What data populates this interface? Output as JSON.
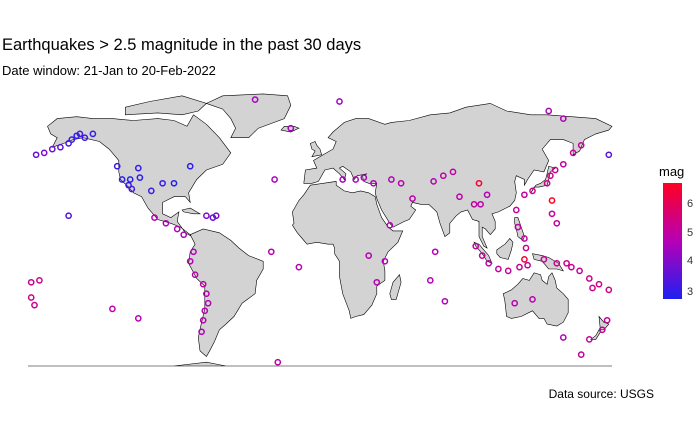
{
  "header": {
    "title": "Earthquakes > 2.5 magnitude in the past 30 days",
    "subtitle": "Date window: 21-Jan to 20-Feb-2022"
  },
  "caption": "Data source: USGS",
  "legend": {
    "title": "mag",
    "ticks": [
      "3",
      "4",
      "5",
      "6"
    ],
    "colors": {
      "low": "#1f1ff0",
      "mid": "#b600b6",
      "high": "#ff0022"
    }
  },
  "map": {
    "land_color": "#d3d3d3",
    "border_color": "#000000"
  },
  "chart_data": {
    "type": "scatter",
    "title": "Earthquakes > 2.5 magnitude in the past 30 days",
    "xlabel": "",
    "ylabel": "",
    "xlim": [
      -180,
      180
    ],
    "ylim": [
      -60,
      84
    ],
    "color_scale": {
      "variable": "mag",
      "range": [
        2.5,
        6.8
      ],
      "ticks": [
        3,
        4,
        5,
        6
      ]
    },
    "grid": false,
    "legend": "right",
    "points": [
      {
        "lon": -153,
        "lat": 59,
        "mag": 2.8
      },
      {
        "lon": -150,
        "lat": 61,
        "mag": 2.7
      },
      {
        "lon": -148,
        "lat": 62,
        "mag": 3.0
      },
      {
        "lon": -145,
        "lat": 60,
        "mag": 2.9
      },
      {
        "lon": -155,
        "lat": 57,
        "mag": 3.1
      },
      {
        "lon": -160,
        "lat": 55,
        "mag": 3.4
      },
      {
        "lon": -165,
        "lat": 54,
        "mag": 3.6
      },
      {
        "lon": -170,
        "lat": 52,
        "mag": 3.8
      },
      {
        "lon": -175,
        "lat": 51,
        "mag": 3.5
      },
      {
        "lon": 178,
        "lat": 51,
        "mag": 3.4
      },
      {
        "lon": -140,
        "lat": 62,
        "mag": 2.8
      },
      {
        "lon": -122,
        "lat": 38,
        "mag": 2.7
      },
      {
        "lon": -118,
        "lat": 35,
        "mag": 2.9
      },
      {
        "lon": -116,
        "lat": 33,
        "mag": 3.0
      },
      {
        "lon": -117,
        "lat": 38,
        "mag": 2.6
      },
      {
        "lon": -112,
        "lat": 44,
        "mag": 2.8
      },
      {
        "lon": -111,
        "lat": 39,
        "mag": 2.7
      },
      {
        "lon": -125,
        "lat": 45,
        "mag": 2.8
      },
      {
        "lon": -97,
        "lat": 36,
        "mag": 2.8
      },
      {
        "lon": -104,
        "lat": 32,
        "mag": 3.0
      },
      {
        "lon": -90,
        "lat": 36,
        "mag": 2.6
      },
      {
        "lon": -80,
        "lat": 45,
        "mag": 2.7
      },
      {
        "lon": -155,
        "lat": 19,
        "mag": 3.2
      },
      {
        "lon": -66,
        "lat": 18,
        "mag": 3.5
      },
      {
        "lon": -64,
        "lat": 19,
        "mag": 3.8
      },
      {
        "lon": -70,
        "lat": 19,
        "mag": 4.0
      },
      {
        "lon": -95,
        "lat": 15,
        "mag": 4.5
      },
      {
        "lon": -102,
        "lat": 18,
        "mag": 4.7
      },
      {
        "lon": -88,
        "lat": 12,
        "mag": 4.6
      },
      {
        "lon": -84,
        "lat": 9,
        "mag": 4.5
      },
      {
        "lon": -78,
        "lat": 0,
        "mag": 4.6
      },
      {
        "lon": -80,
        "lat": -5,
        "mag": 4.7
      },
      {
        "lon": -77,
        "lat": -12,
        "mag": 4.8
      },
      {
        "lon": -72,
        "lat": -17,
        "mag": 4.9
      },
      {
        "lon": -70,
        "lat": -22,
        "mag": 4.7
      },
      {
        "lon": -69,
        "lat": -27,
        "mag": 4.6
      },
      {
        "lon": -71,
        "lat": -31,
        "mag": 4.8
      },
      {
        "lon": -72,
        "lat": -36,
        "mag": 4.7
      },
      {
        "lon": -73,
        "lat": -42,
        "mag": 4.6
      },
      {
        "lon": -26,
        "lat": -58,
        "mag": 4.9
      },
      {
        "lon": -30,
        "lat": 0,
        "mag": 4.7
      },
      {
        "lon": -28,
        "lat": 38,
        "mag": 4.5
      },
      {
        "lon": -18,
        "lat": 65,
        "mag": 4.4
      },
      {
        "lon": -13,
        "lat": -8,
        "mag": 4.7
      },
      {
        "lon": 14,
        "lat": 38,
        "mag": 4.4
      },
      {
        "lon": 22,
        "lat": 38,
        "mag": 4.6
      },
      {
        "lon": 27,
        "lat": 39,
        "mag": 4.5
      },
      {
        "lon": 33,
        "lat": 36,
        "mag": 4.6
      },
      {
        "lon": 44,
        "lat": 38,
        "mag": 4.6
      },
      {
        "lon": 50,
        "lat": 36,
        "mag": 4.7
      },
      {
        "lon": 57,
        "lat": 28,
        "mag": 4.8
      },
      {
        "lon": 70,
        "lat": 37,
        "mag": 4.7
      },
      {
        "lon": 76,
        "lat": 40,
        "mag": 4.8
      },
      {
        "lon": 82,
        "lat": 42,
        "mag": 4.9
      },
      {
        "lon": 86,
        "lat": 29,
        "mag": 4.8
      },
      {
        "lon": 95,
        "lat": 25,
        "mag": 4.9
      },
      {
        "lon": 99,
        "lat": 25,
        "mag": 4.8
      },
      {
        "lon": 103,
        "lat": 30,
        "mag": 4.7
      },
      {
        "lon": 96,
        "lat": 3,
        "mag": 5.0
      },
      {
        "lon": 100,
        "lat": -2,
        "mag": 5.1
      },
      {
        "lon": 104,
        "lat": -6,
        "mag": 4.9
      },
      {
        "lon": 110,
        "lat": -9,
        "mag": 5.0
      },
      {
        "lon": 116,
        "lat": -10,
        "mag": 5.1
      },
      {
        "lon": 123,
        "lat": -8,
        "mag": 5.2
      },
      {
        "lon": 128,
        "lat": -7,
        "mag": 5.1
      },
      {
        "lon": 127,
        "lat": 2,
        "mag": 5.2
      },
      {
        "lon": 126,
        "lat": 7,
        "mag": 5.0
      },
      {
        "lon": 122,
        "lat": 13,
        "mag": 5.0
      },
      {
        "lon": 121,
        "lat": 22,
        "mag": 5.1
      },
      {
        "lon": 126,
        "lat": 30,
        "mag": 5.0
      },
      {
        "lon": 131,
        "lat": 32,
        "mag": 5.2
      },
      {
        "lon": 140,
        "lat": 36,
        "mag": 5.3
      },
      {
        "lon": 142,
        "lat": 40,
        "mag": 5.4
      },
      {
        "lon": 145,
        "lat": 43,
        "mag": 5.2
      },
      {
        "lon": 150,
        "lat": 46,
        "mag": 5.0
      },
      {
        "lon": 156,
        "lat": 52,
        "mag": 5.1
      },
      {
        "lon": 161,
        "lat": 56,
        "mag": 5.0
      },
      {
        "lon": 143,
        "lat": 20,
        "mag": 5.1
      },
      {
        "lon": 146,
        "lat": 15,
        "mag": 5.0
      },
      {
        "lon": 138,
        "lat": -4,
        "mag": 5.1
      },
      {
        "lon": 146,
        "lat": -6,
        "mag": 5.2
      },
      {
        "lon": 152,
        "lat": -6,
        "mag": 5.3
      },
      {
        "lon": 155,
        "lat": -8,
        "mag": 5.2
      },
      {
        "lon": 160,
        "lat": -10,
        "mag": 5.1
      },
      {
        "lon": 166,
        "lat": -14,
        "mag": 5.3
      },
      {
        "lon": 168,
        "lat": -19,
        "mag": 5.2
      },
      {
        "lon": 172,
        "lat": -17,
        "mag": 5.4
      },
      {
        "lon": 178,
        "lat": -20,
        "mag": 5.3
      },
      {
        "lon": -178,
        "lat": -24,
        "mag": 5.2
      },
      {
        "lon": -176,
        "lat": -28,
        "mag": 5.1
      },
      {
        "lon": 177,
        "lat": -36,
        "mag": 5.0
      },
      {
        "lon": 174,
        "lat": -41,
        "mag": 5.1
      },
      {
        "lon": 166,
        "lat": -46,
        "mag": 5.0
      },
      {
        "lon": 161,
        "lat": -54,
        "mag": 5.0
      },
      {
        "lon": -178,
        "lat": -16,
        "mag": 5.1
      },
      {
        "lon": -173,
        "lat": -15,
        "mag": 5.3
      },
      {
        "lon": -128,
        "lat": -30,
        "mag": 4.8
      },
      {
        "lon": -112,
        "lat": -35,
        "mag": 4.7
      },
      {
        "lon": 68,
        "lat": -15,
        "mag": 4.6
      },
      {
        "lon": 71,
        "lat": 0,
        "mag": 4.6
      },
      {
        "lon": 77,
        "lat": -26,
        "mag": 4.6
      },
      {
        "lon": 40,
        "lat": -5,
        "mag": 4.6
      },
      {
        "lon": 30,
        "lat": -2,
        "mag": 4.7
      },
      {
        "lon": 35,
        "lat": -16,
        "mag": 4.7
      },
      {
        "lon": 43,
        "lat": 14,
        "mag": 4.6
      },
      {
        "lon": 120,
        "lat": -27,
        "mag": 4.7
      },
      {
        "lon": 131,
        "lat": -25,
        "mag": 4.8
      },
      {
        "lon": 150,
        "lat": -45,
        "mag": 4.6
      },
      {
        "lon": 141,
        "lat": 74,
        "mag": 4.5
      },
      {
        "lon": 150,
        "lat": 70,
        "mag": 4.6
      },
      {
        "lon": 12,
        "lat": 79,
        "mag": 4.3
      },
      {
        "lon": -40,
        "lat": 80,
        "mag": 4.4
      },
      {
        "lon": 98,
        "lat": 36,
        "mag": 6.6
      },
      {
        "lon": 143,
        "lat": 27,
        "mag": 6.8
      },
      {
        "lon": 126,
        "lat": -4,
        "mag": 6.5
      }
    ]
  }
}
